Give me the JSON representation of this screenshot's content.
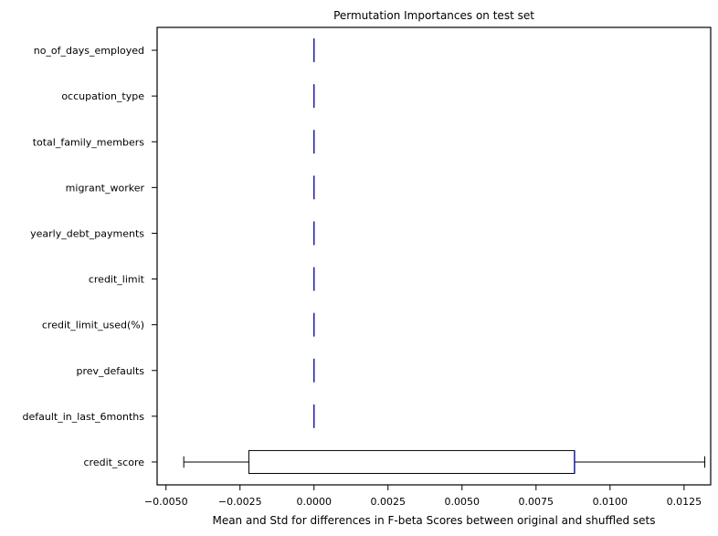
{
  "chart_data": {
    "type": "box",
    "orientation": "horizontal",
    "title": "Permutation Importances on test set",
    "xlabel": "Mean and Std for differences in F-beta Scores between original and shuffled sets",
    "ylabel": "",
    "xlim": [
      -0.0053,
      0.0134
    ],
    "x_ticks": [
      {
        "value": -0.005,
        "label": "−0.0050"
      },
      {
        "value": -0.0025,
        "label": "−0.0025"
      },
      {
        "value": 0.0,
        "label": "0.0000"
      },
      {
        "value": 0.0025,
        "label": "0.0025"
      },
      {
        "value": 0.005,
        "label": "0.0050"
      },
      {
        "value": 0.0075,
        "label": "0.0075"
      },
      {
        "value": 0.01,
        "label": "0.0100"
      },
      {
        "value": 0.0125,
        "label": "0.0125"
      }
    ],
    "grid": false,
    "median_color": "#1f1fa8",
    "categories": [
      "no_of_days_employed",
      "occupation_type",
      "total_family_members",
      "migrant_worker",
      "yearly_debt_payments",
      "credit_limit",
      "credit_limit_used(%)",
      "prev_defaults",
      "default_in_last_6months",
      "credit_score"
    ],
    "boxes": [
      {
        "whislo": 0,
        "q1": 0,
        "med": 0,
        "q3": 0,
        "whishi": 0
      },
      {
        "whislo": 0,
        "q1": 0,
        "med": 0,
        "q3": 0,
        "whishi": 0
      },
      {
        "whislo": 0,
        "q1": 0,
        "med": 0,
        "q3": 0,
        "whishi": 0
      },
      {
        "whislo": 0,
        "q1": 0,
        "med": 0,
        "q3": 0,
        "whishi": 0
      },
      {
        "whislo": 0,
        "q1": 0,
        "med": 0,
        "q3": 0,
        "whishi": 0
      },
      {
        "whislo": 0,
        "q1": 0,
        "med": 0,
        "q3": 0,
        "whishi": 0
      },
      {
        "whislo": 0,
        "q1": 0,
        "med": 0,
        "q3": 0,
        "whishi": 0
      },
      {
        "whislo": 0,
        "q1": 0,
        "med": 0,
        "q3": 0,
        "whishi": 0
      },
      {
        "whislo": 0,
        "q1": 0,
        "med": 0,
        "q3": 0,
        "whishi": 0
      },
      {
        "whislo": -0.0044,
        "q1": -0.0022,
        "med": 0.0088,
        "q3": 0.0088,
        "whishi": 0.0132
      }
    ]
  }
}
